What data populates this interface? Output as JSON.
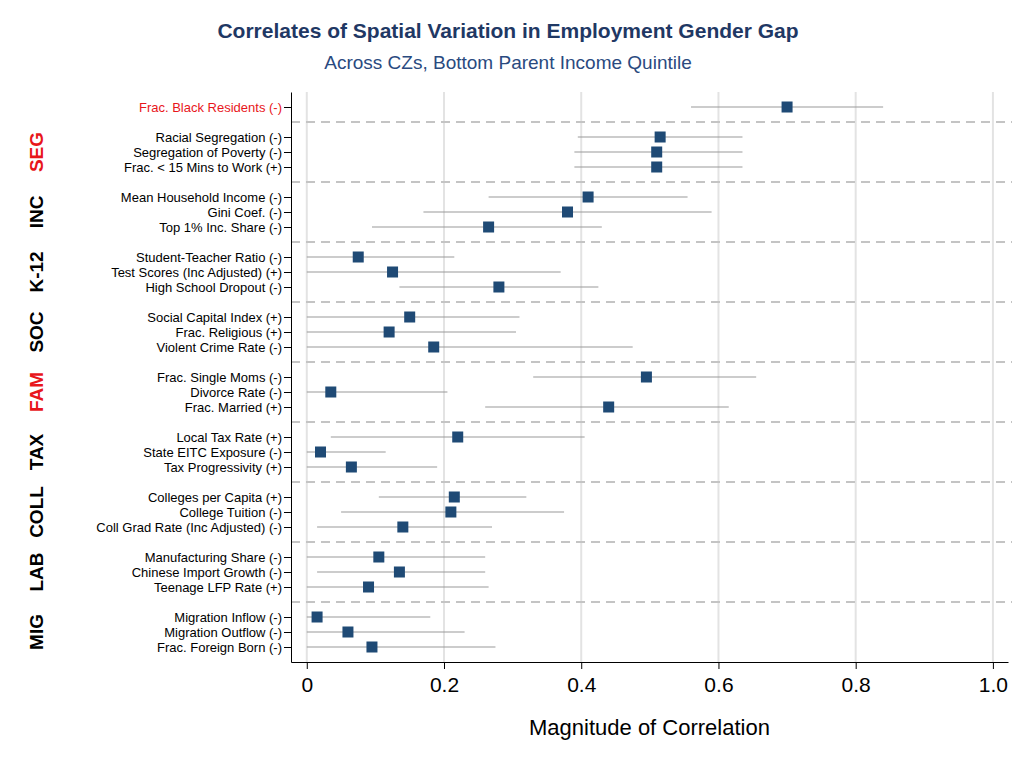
{
  "chart_data": {
    "type": "dot",
    "orientation": "horizontal",
    "title": "Correlates of Spatial Variation in Employment Gender Gap",
    "subtitle": "Across CZs, Bottom Parent Income Quintile",
    "x_label": "Magnitude of Correlation",
    "grid": true,
    "color": "#1f4a75",
    "xlim": [
      -0.023,
      1.022
    ],
    "xticks": [
      0,
      0.2,
      0.4,
      0.6,
      0.8,
      {
        "value": 1,
        "label": "1.0"
      }
    ],
    "categories": [
      "Frac. Black Residents (-)",
      "Racial Segregation (-)",
      "Segregation of Poverty (-)",
      "Frac. < 15 Mins to Work (+)",
      "Mean Household Income (-)",
      "Gini Coef. (-)",
      "Top 1% Inc. Share (-)",
      "Student-Teacher Ratio (-)",
      "Test Scores (Inc Adjusted) (+)",
      "High School Dropout (-)",
      "Social Capital Index (+)",
      "Frac. Religious (+)",
      "Violent Crime Rate (-)",
      "Frac. Single Moms (-)",
      "Divorce Rate (-)",
      "Frac. Married (+)",
      "Local Tax Rate (+)",
      "State EITC Exposure (-)",
      "Tax Progressivity (+)",
      "Colleges per Capita (+)",
      "College Tuition (-)",
      "Coll Grad Rate (Inc Adjusted) (-)",
      "Manufacturing Share (-)",
      "Chinese Import Growth (-)",
      "Teenage LFP Rate (+)",
      "Migration Inflow (-)",
      "Migration Outflow (-)",
      "Frac. Foreign Born (-)"
    ],
    "groups": [
      null,
      "SEG",
      "SEG",
      "SEG",
      "INC",
      "INC",
      "INC",
      "K-12",
      "K-12",
      "K-12",
      "SOC",
      "SOC",
      "SOC",
      "FAM",
      "FAM",
      "FAM",
      "TAX",
      "TAX",
      "TAX",
      "COLL",
      "COLL",
      "COLL",
      "LAB",
      "LAB",
      "LAB",
      "MIG",
      "MIG",
      "MIG"
    ],
    "values": [
      0.7,
      0.515,
      0.51,
      0.51,
      0.41,
      0.38,
      0.265,
      0.075,
      0.125,
      0.28,
      0.15,
      0.12,
      0.185,
      0.495,
      0.035,
      0.44,
      0.22,
      0.02,
      0.065,
      0.215,
      0.21,
      0.14,
      0.105,
      0.135,
      0.09,
      0.015,
      0.06,
      0.095
    ],
    "lower": [
      0.56,
      0.395,
      0.39,
      0.39,
      0.265,
      0.17,
      0.095,
      0,
      0,
      0.135,
      0,
      0,
      0,
      0.33,
      0,
      0.26,
      0.035,
      0,
      0,
      0.105,
      0.05,
      0.015,
      0,
      0.015,
      0,
      0,
      0,
      0
    ],
    "upper": [
      0.84,
      0.635,
      0.635,
      0.635,
      0.555,
      0.59,
      0.43,
      0.215,
      0.37,
      0.425,
      0.31,
      0.305,
      0.475,
      0.655,
      0.205,
      0.615,
      0.405,
      0.115,
      0.19,
      0.32,
      0.375,
      0.27,
      0.26,
      0.26,
      0.265,
      0.18,
      0.23,
      0.275
    ]
  }
}
